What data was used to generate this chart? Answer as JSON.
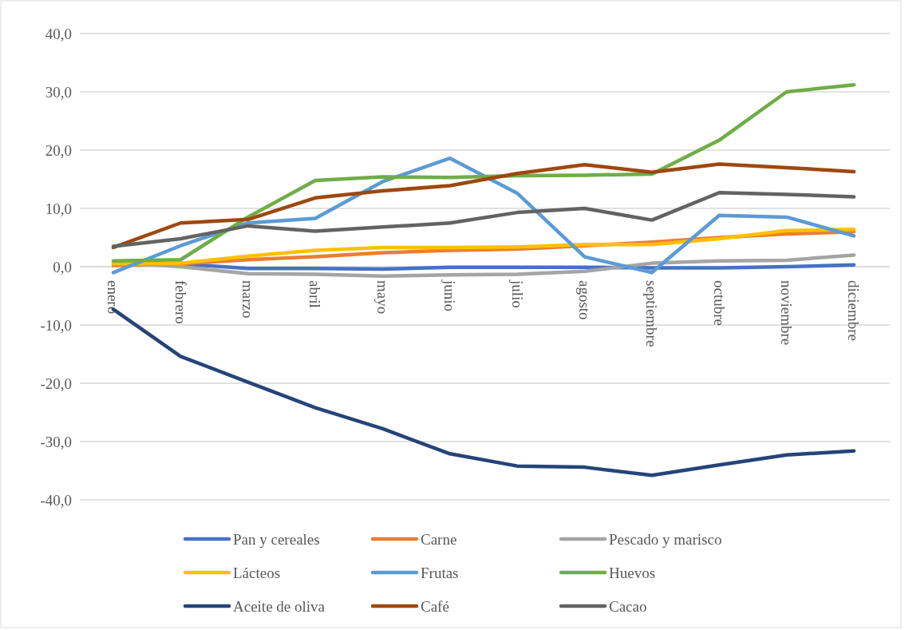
{
  "chart_data": {
    "type": "line",
    "categories": [
      "enero",
      "febrero",
      "marzo",
      "abril",
      "mayo",
      "junio",
      "julio",
      "agosto",
      "septiembre",
      "octubre",
      "noviembre",
      "diciembre"
    ],
    "ylim": [
      -40,
      40
    ],
    "yticks": [
      {
        "value": -40,
        "label": "-40,0"
      },
      {
        "value": -30,
        "label": "-30,0"
      },
      {
        "value": -20,
        "label": "-20,0"
      },
      {
        "value": -10,
        "label": "-10,0"
      },
      {
        "value": 0,
        "label": "0,0"
      },
      {
        "value": 10,
        "label": "10,0"
      },
      {
        "value": 20,
        "label": "20,0"
      },
      {
        "value": 30,
        "label": "30,0"
      },
      {
        "value": 40,
        "label": "40,0"
      }
    ],
    "grid": "y",
    "legend": "bottom",
    "marker": "none",
    "line_style": "solid",
    "series": [
      {
        "name": "Pan y cereales",
        "color": "#4472c4",
        "values": [
          0.5,
          0.5,
          -0.3,
          -0.3,
          -0.4,
          -0.1,
          -0.1,
          -0.1,
          -0.2,
          -0.2,
          0,
          0.3
        ]
      },
      {
        "name": "Carne",
        "color": "#ed7d31",
        "values": [
          0.2,
          0.5,
          1.2,
          1.7,
          2.4,
          2.8,
          3.0,
          3.6,
          4.2,
          5.0,
          5.6,
          6.0
        ]
      },
      {
        "name": "Pescado y marisco",
        "color": "#a5a5a5",
        "values": [
          0.8,
          0,
          -1.2,
          -1.3,
          -1.6,
          -1.4,
          -1.3,
          -0.8,
          0.6,
          1.0,
          1.1,
          2.0
        ]
      },
      {
        "name": "Lácteos",
        "color": "#ffc000",
        "values": [
          0.5,
          0.6,
          1.8,
          2.8,
          3.3,
          3.3,
          3.4,
          3.8,
          3.8,
          4.8,
          6.2,
          6.4
        ]
      },
      {
        "name": "Frutas",
        "color": "#5b9bd5",
        "values": [
          -1.0,
          3.6,
          7.5,
          8.3,
          14.6,
          18.6,
          12.6,
          1.7,
          -1.0,
          8.8,
          8.5,
          5.3
        ]
      },
      {
        "name": "Huevos",
        "color": "#70ad47",
        "values": [
          1.0,
          1.2,
          8.5,
          14.8,
          15.4,
          15.3,
          15.6,
          15.7,
          15.9,
          21.7,
          30.0,
          31.2
        ]
      },
      {
        "name": "Aceite de oliva",
        "color": "#264478",
        "values": [
          -7.3,
          -15.4,
          -19.8,
          -24.2,
          -27.8,
          -32.1,
          -34.2,
          -34.4,
          -35.8,
          -34.0,
          -32.3,
          -31.6
        ]
      },
      {
        "name": "Café",
        "color": "#9e480e",
        "values": [
          3.3,
          7.5,
          8.1,
          11.8,
          13.0,
          13.9,
          16.0,
          17.5,
          16.2,
          17.6,
          17.0,
          16.3
        ]
      },
      {
        "name": "Cacao",
        "color": "#636363",
        "values": [
          3.5,
          4.8,
          7.0,
          6.1,
          6.8,
          7.5,
          9.3,
          10.0,
          8.0,
          12.7,
          12.4,
          12.0
        ]
      }
    ]
  }
}
